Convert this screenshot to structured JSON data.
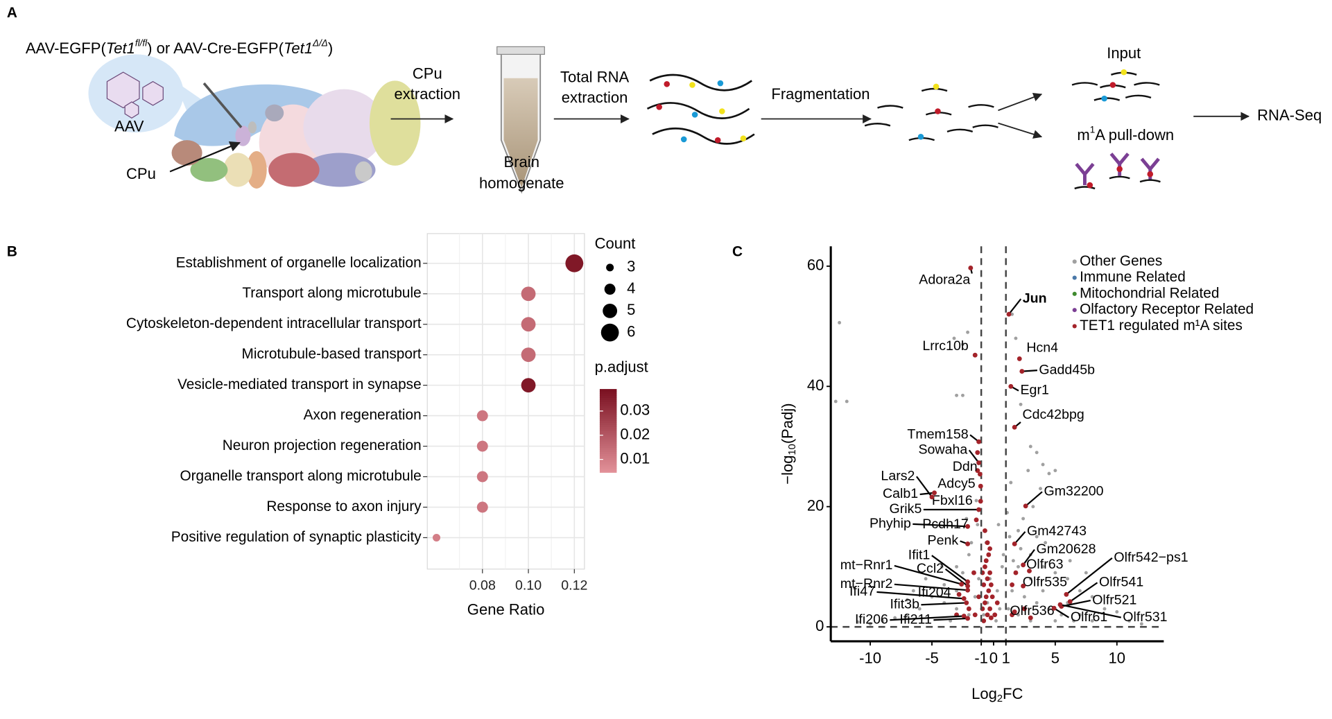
{
  "diagram": {
    "label": "A",
    "vector": [
      "AAV-EGFP(",
      "Tet1",
      "fl/fl",
      ") or AAV-Cre-EGFP(",
      "Tet1",
      "Δ/Δ",
      ")"
    ],
    "virus": "AAV",
    "region": "CPu",
    "steps": [
      [
        "CPu",
        "extraction"
      ],
      [
        "Brain",
        "homogenate"
      ],
      [
        "Total RNA",
        "extraction"
      ],
      [
        "Fragmentation"
      ],
      [
        "Input"
      ],
      [
        "m",
        "1",
        "A pull-down"
      ],
      [
        "RNA-Seq"
      ]
    ]
  },
  "chart_data": [
    {
      "type": "dot",
      "panel_label": "B",
      "categories": [
        "Establishment of organelle localization",
        "Transport along microtubule",
        "Cytoskeleton-dependent intracellular transport",
        "Microtubule-based transport",
        "Vesicle-mediated transport in synapse",
        "Axon regeneration",
        "Neuron projection regeneration",
        "Organelle transport along microtubule",
        "Response to axon injury",
        "Positive regulation of synaptic plasticity"
      ],
      "values": [
        0.12,
        0.1,
        0.1,
        0.1,
        0.1,
        0.08,
        0.08,
        0.08,
        0.08,
        0.06
      ],
      "counts": [
        6,
        5,
        5,
        5,
        5,
        4,
        4,
        4,
        4,
        3
      ],
      "p_adjust": [
        0.037,
        0.015,
        0.015,
        0.015,
        0.037,
        0.012,
        0.012,
        0.012,
        0.012,
        0.01
      ],
      "xlim": [
        0.056,
        0.1244
      ],
      "xticks": [
        0.08,
        {
          "value": 0.1,
          "label": "0.10"
        },
        0.12
      ],
      "x_label": "Gene Ratio",
      "grid": true,
      "size_title": "Count",
      "size_legend": [
        3,
        4,
        5,
        6
      ],
      "color_title": "p.adjust",
      "color_lim": [
        0.0047,
        0.0391
      ],
      "color_ticks": [
        0.01,
        0.02,
        0.03
      ],
      "color_low": "#e3929a",
      "color_high": "#7a1020"
    },
    {
      "type": "scatter",
      "panel_label": "C",
      "xlim": [
        -13.2,
        13.8
      ],
      "ylim": [
        -2.4,
        63.3
      ],
      "xticks": [
        -10,
        -5,
        -1,
        0,
        1,
        5,
        10
      ],
      "yticks": [
        0,
        20,
        40,
        60
      ],
      "x_label": [
        "Log",
        "2",
        "FC"
      ],
      "y_label": [
        "−log",
        "10",
        "(Padj)"
      ],
      "thresholds": {
        "x": [
          -1,
          1
        ],
        "y": 0
      },
      "series": [
        {
          "name": "Other Genes",
          "color": "#a0a0a0",
          "label_color": "#000000",
          "x": [
            -12.5,
            -12.8,
            -11.9,
            -3.2,
            -2.5,
            -2.1,
            -2.5,
            -3,
            1.5,
            2.2,
            1.8,
            3,
            3.5,
            4,
            2.8,
            5,
            4.5,
            2.4,
            3.2,
            -1.4,
            2.2,
            3,
            4,
            5,
            6,
            7,
            8,
            9,
            10,
            6,
            4,
            3,
            2,
            1.5,
            1.2,
            2,
            3,
            5,
            7,
            8,
            -2,
            -3,
            -4,
            -5,
            -6,
            -7,
            -8,
            -9,
            -4,
            -3,
            -2.5,
            -2,
            -3,
            -5.5,
            -6.5,
            -3.5,
            -1.5,
            -1.2,
            -1.8,
            1.3,
            1.6,
            2.5,
            3.5,
            4.5,
            5.5,
            6.5,
            11,
            12,
            -10,
            -11,
            2,
            3.5,
            1.4,
            3.8,
            4.2,
            6.2,
            7.5,
            -1.3,
            -2.2,
            -4.2,
            -7,
            0.5,
            -0.5,
            0.3,
            -0.3,
            0.7,
            0.2,
            -0.8,
            0.8,
            -0.6,
            0.4,
            1.1
          ],
          "values": [
            50.6,
            37.5,
            37.5,
            48,
            47,
            49,
            38.5,
            38.5,
            52,
            37,
            48,
            30,
            29,
            27,
            26,
            26,
            25.5,
            18,
            20,
            21,
            13,
            12,
            10,
            9,
            8,
            6,
            5,
            3,
            2.5,
            4,
            6,
            8,
            10,
            6,
            3,
            2,
            1,
            1,
            2,
            1,
            2,
            3,
            4,
            5,
            3,
            2,
            1.5,
            1,
            7,
            6,
            9,
            12,
            10,
            8,
            6,
            1,
            5,
            8,
            14,
            15,
            11,
            5,
            4,
            3,
            2,
            1,
            1,
            0.5,
            0.5,
            0.8,
            16,
            15,
            24,
            23,
            14,
            11,
            9,
            17,
            18,
            10,
            4.5,
            3,
            4,
            6,
            8,
            10,
            1,
            2,
            12,
            14,
            17,
            19
          ]
        },
        {
          "name": "Immune Related",
          "color": "#4a78a8",
          "label_color": "#4a78a8",
          "x": [],
          "values": []
        },
        {
          "name": "Mitochondrial Related",
          "color": "#3f8a2e",
          "label_color": "#3f8a2e",
          "x": [],
          "values": []
        },
        {
          "name": "Olfactory Receptor Related",
          "color": "#7b3f94",
          "label_color": "#7b3f94",
          "x": [],
          "values": []
        },
        {
          "name": "TET1 regulated m¹A sites",
          "color": "#a3232a",
          "label_color": "#a3232a",
          "x": [
            -0.8,
            -0.5,
            -0.3,
            -0.7,
            -0.6,
            -0.4,
            -0.8,
            -0.5,
            -0.3,
            -0.7,
            -0.6,
            -0.4,
            -0.5,
            -0.7,
            -0.2,
            -0.9,
            -0.1,
            0.1,
            0.3,
            -0.9,
            -0.3,
            -0.2,
            -1.5,
            -2,
            -3,
            1.5,
            2.5,
            3,
            -1.2,
            -1.6,
            -1.3,
            -1.3,
            1.8,
            1.5
          ],
          "values": [
            1,
            2,
            3,
            4,
            5,
            6,
            7,
            8,
            9,
            10,
            11,
            12,
            14,
            16,
            1.5,
            3,
            5,
            2,
            4,
            9,
            13,
            7,
            2,
            3,
            2,
            2,
            3,
            1.5,
            5,
            9,
            29,
            26,
            9,
            7
          ]
        }
      ],
      "annotations": [
        {
          "text": "Adora2a",
          "color": "#000000",
          "point_color": "#a3232a",
          "x": -1.86,
          "y": 59.7
        },
        {
          "text": "Lrrc10b",
          "color": "#000000",
          "point_color": "#a3232a",
          "x": -1.5,
          "y": 45.2
        },
        {
          "text": "Jun",
          "color": "#a52a2a",
          "point_color": "#a3232a",
          "x": 1.24,
          "y": 52
        },
        {
          "text": "Hcn4",
          "color": "#000000",
          "point_color": "#a3232a",
          "x": 2.1,
          "y": 44.6
        },
        {
          "text": "Gadd45b",
          "color": "#c2177b",
          "point_color": "#a3232a",
          "x": 2.3,
          "y": 42.5
        },
        {
          "text": "Egr1",
          "color": "#000000",
          "point_color": "#a3232a",
          "x": 1.4,
          "y": 40
        },
        {
          "text": "Cdc42bpg",
          "color": "#000000",
          "point_color": "#a3232a",
          "x": 1.7,
          "y": 33.2
        },
        {
          "text": "Tmem158",
          "color": "#000000",
          "point_color": "#a3232a",
          "x": -1.2,
          "y": 30.8
        },
        {
          "text": "Sowaha",
          "color": "#000000",
          "point_color": "#a3232a",
          "x": -1.2,
          "y": 27.3
        },
        {
          "text": "Ddn",
          "color": "#000000",
          "point_color": "#a3232a",
          "x": -1.1,
          "y": 25.4
        },
        {
          "text": "Adcy5",
          "color": "#000000",
          "point_color": "#a3232a",
          "x": -1.05,
          "y": 23.4
        },
        {
          "text": "Calb1",
          "color": "#000000",
          "point_color": "#a3232a",
          "x": -4.8,
          "y": 22.3
        },
        {
          "text": "Fbxl16",
          "color": "#000000",
          "point_color": "#a3232a",
          "x": -1.05,
          "y": 20.9
        },
        {
          "text": "Grik5",
          "color": "#000000",
          "point_color": "#a3232a",
          "x": -1.2,
          "y": 19.5
        },
        {
          "text": "Pcdh17",
          "color": "#000000",
          "point_color": "#a3232a",
          "x": -1.4,
          "y": 17.8
        },
        {
          "text": "Phyhip",
          "color": "#000000",
          "point_color": "#a3232a",
          "x": -2.1,
          "y": 16.7
        },
        {
          "text": "Gm32200",
          "color": "#000000",
          "point_color": "#a3232a",
          "x": 2.6,
          "y": 20.1
        },
        {
          "text": "Penk",
          "color": "#000000",
          "point_color": "#a3232a",
          "x": -2.1,
          "y": 13.8
        },
        {
          "text": "Gm42743",
          "color": "#000000",
          "point_color": "#a3232a",
          "x": 1.7,
          "y": 13.8
        },
        {
          "text": "Gm20628",
          "color": "#000000",
          "point_color": "#a3232a",
          "x": 2.4,
          "y": 10.3
        },
        {
          "text": "Ifit1",
          "color": "#4a78a8",
          "point_color": "#a3232a",
          "x": -2.1,
          "y": 7.5
        },
        {
          "text": "Ccl2",
          "color": "#4a78a8",
          "point_color": "#a3232a",
          "x": -2.1,
          "y": 6.8
        },
        {
          "text": "Ifi204",
          "color": "#4a78a8",
          "point_color": "#a3232a",
          "x": -2.8,
          "y": 5.4
        },
        {
          "text": "Ifi47",
          "color": "#4a78a8",
          "point_color": "#a3232a",
          "x": -2.4,
          "y": 4.7
        },
        {
          "text": "Ifit3b",
          "color": "#4a78a8",
          "point_color": "#a3232a",
          "x": -2.2,
          "y": 4
        },
        {
          "text": "Ifi206",
          "color": "#4a78a8",
          "point_color": "#a3232a",
          "x": -2.4,
          "y": 1.8
        },
        {
          "text": "Ifi211",
          "color": "#4a78a8",
          "point_color": "#a3232a",
          "x": -2.1,
          "y": 1.4
        },
        {
          "text": "mt−Rnr1",
          "color": "#3f8a2e",
          "point_color": "#a3232a",
          "x": -2.6,
          "y": 7.1
        },
        {
          "text": "mt−Rnr2",
          "color": "#3f8a2e",
          "point_color": "#a3232a",
          "x": -2.1,
          "y": 6.1
        },
        {
          "text": "Lars2",
          "color": "#3f8a2e",
          "point_color": "#a3232a",
          "x": -5,
          "y": 21.6
        },
        {
          "text": "Olfr63",
          "color": "#7b3f94",
          "point_color": "#a3232a",
          "x": 2.9,
          "y": 9.3
        },
        {
          "text": "Olfr542−ps1",
          "color": "#7b3f94",
          "point_color": "#a3232a",
          "x": 5.9,
          "y": 5.4
        },
        {
          "text": "Olfr535",
          "color": "#7b3f94",
          "point_color": "#a3232a",
          "x": 2.4,
          "y": 6.8
        },
        {
          "text": "Olfr541",
          "color": "#7b3f94",
          "point_color": "#a3232a",
          "x": 6.2,
          "y": 4.2
        },
        {
          "text": "Olfr521",
          "color": "#7b3f94",
          "point_color": "#a3232a",
          "x": 5.5,
          "y": 3.4
        },
        {
          "text": "Olfr536",
          "color": "#7b3f94",
          "point_color": "#a3232a",
          "x": 1.7,
          "y": 2.5
        },
        {
          "text": "Olfr61",
          "color": "#7b3f94",
          "point_color": "#a3232a",
          "x": 4.9,
          "y": 3.1
        },
        {
          "text": "Olfr531",
          "color": "#7b3f94",
          "point_color": "#a3232a",
          "x": 5.4,
          "y": 3.7
        }
      ]
    }
  ]
}
